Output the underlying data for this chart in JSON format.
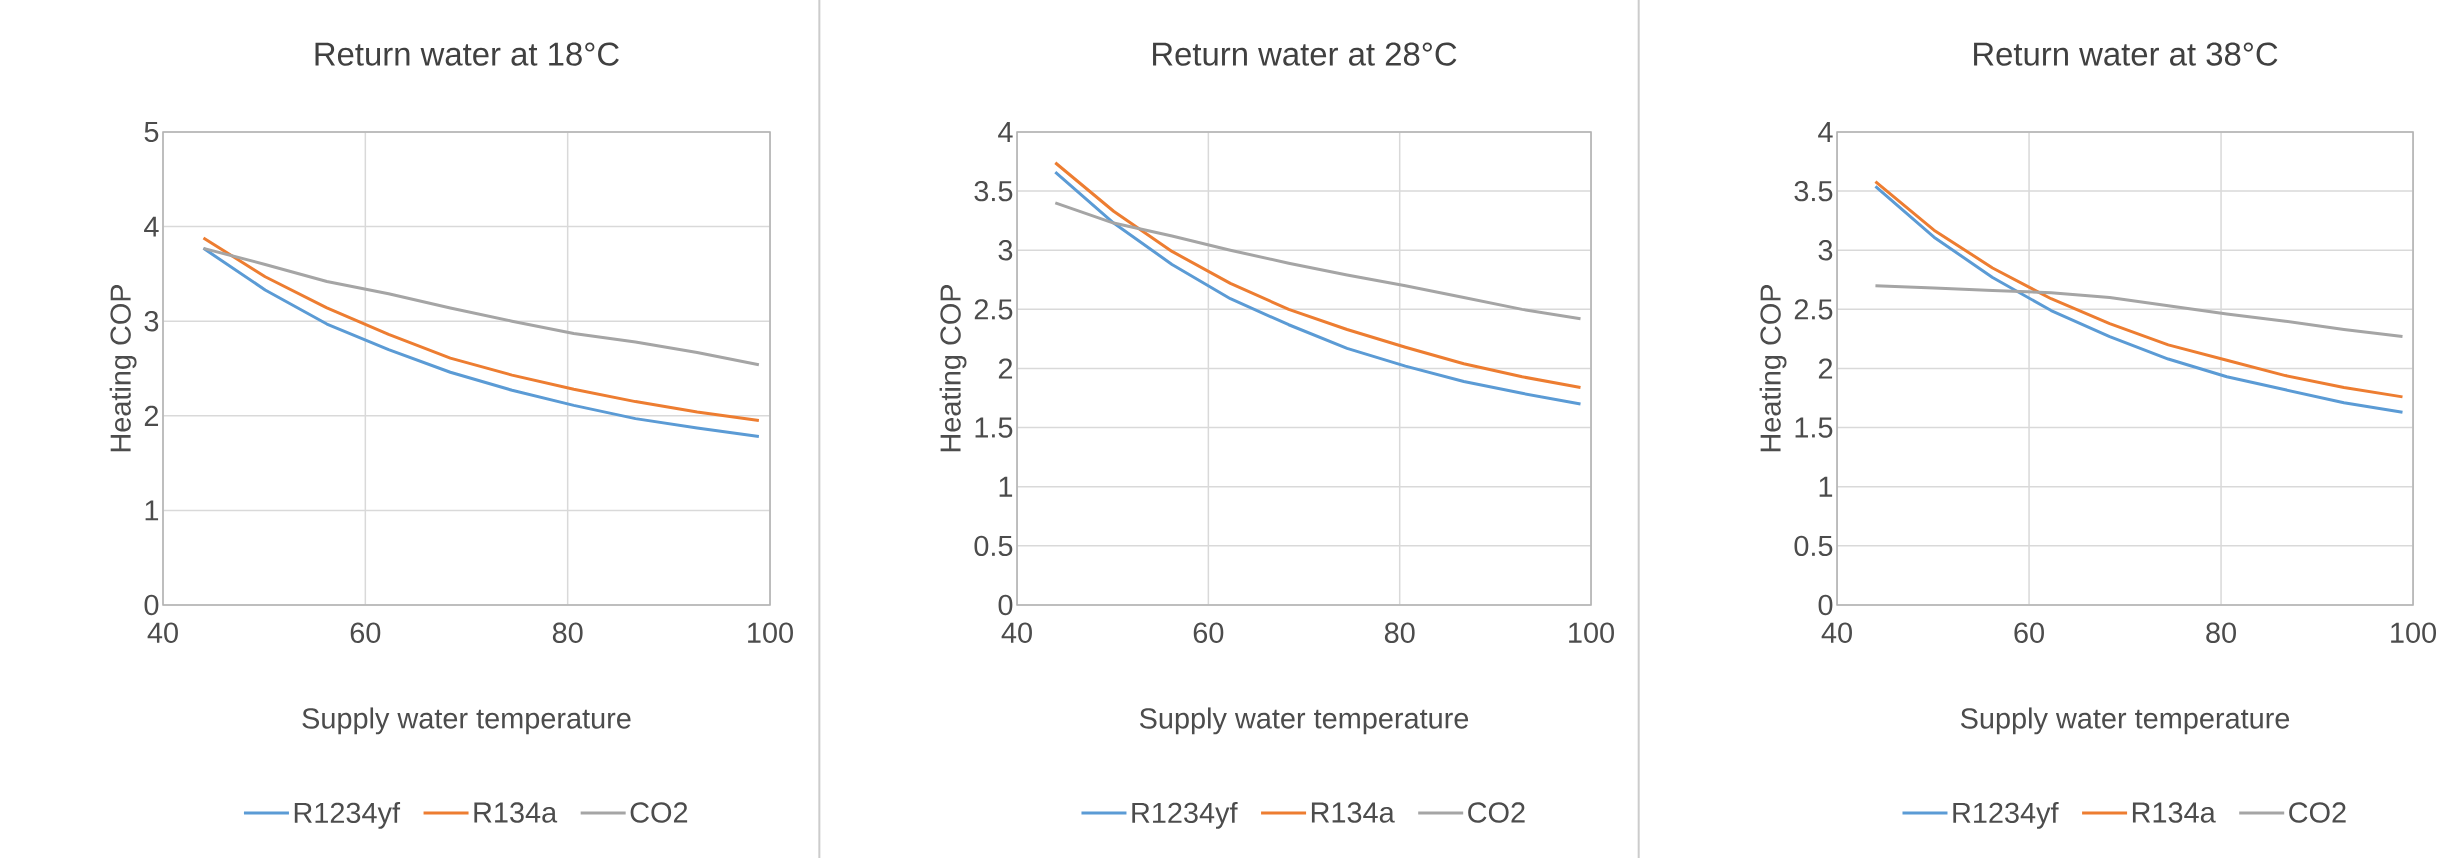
{
  "chart_data": [
    {
      "type": "line",
      "title": "Return water at 18°C",
      "xlabel": "Supply water temperature",
      "ylabel": "Heating COP",
      "xlim": [
        40,
        100
      ],
      "xticks": [
        40,
        60,
        80,
        100
      ],
      "ylim": [
        0,
        5
      ],
      "yticks": [
        0,
        1,
        2,
        3,
        4,
        5
      ],
      "grid": true,
      "legend": "bottom",
      "x": [
        44,
        50.1,
        56.2,
        62.3,
        68.4,
        74.5,
        80.6,
        86.7,
        92.8,
        98.9
      ],
      "series": [
        {
          "name": "R1234yf",
          "color": "#5b9bd5",
          "values": [
            3.77,
            3.33,
            2.97,
            2.7,
            2.46,
            2.27,
            2.11,
            1.97,
            1.87,
            1.78
          ]
        },
        {
          "name": "R134a",
          "color": "#ed7d31",
          "values": [
            3.88,
            3.47,
            3.14,
            2.86,
            2.61,
            2.43,
            2.28,
            2.15,
            2.04,
            1.95
          ]
        },
        {
          "name": "CO2",
          "color": "#a5a5a5",
          "values": [
            3.77,
            3.6,
            3.42,
            3.29,
            3.14,
            3.0,
            2.87,
            2.78,
            2.67,
            2.54
          ]
        }
      ]
    },
    {
      "type": "line",
      "title": "Return water at 28°C",
      "xlabel": "Supply water temperature",
      "ylabel": "Heating COP",
      "xlim": [
        40,
        100
      ],
      "xticks": [
        40,
        60,
        80,
        100
      ],
      "ylim": [
        0,
        4
      ],
      "yticks": [
        0,
        0.5,
        1,
        1.5,
        2,
        2.5,
        3,
        3.5,
        4
      ],
      "grid": true,
      "legend": "bottom",
      "x": [
        44,
        50.1,
        56.2,
        62.3,
        68.4,
        74.5,
        80.6,
        86.7,
        92.8,
        98.9
      ],
      "series": [
        {
          "name": "R1234yf",
          "color": "#5b9bd5",
          "values": [
            3.66,
            3.23,
            2.88,
            2.59,
            2.37,
            2.17,
            2.02,
            1.89,
            1.79,
            1.7
          ]
        },
        {
          "name": "R134a",
          "color": "#ed7d31",
          "values": [
            3.74,
            3.33,
            2.99,
            2.72,
            2.5,
            2.33,
            2.18,
            2.04,
            1.93,
            1.84
          ]
        },
        {
          "name": "CO2",
          "color": "#a5a5a5",
          "values": [
            3.4,
            3.23,
            3.12,
            3.0,
            2.89,
            2.79,
            2.7,
            2.6,
            2.5,
            2.42
          ]
        }
      ]
    },
    {
      "type": "line",
      "title": "Return water at 38°C",
      "xlabel": "Supply water temperature",
      "ylabel": "Heating COP",
      "xlim": [
        40,
        100
      ],
      "xticks": [
        40,
        60,
        80,
        100
      ],
      "ylim": [
        0,
        4
      ],
      "yticks": [
        0,
        0.5,
        1,
        1.5,
        2,
        2.5,
        3,
        3.5,
        4
      ],
      "grid": true,
      "legend": "bottom",
      "x": [
        44,
        50.1,
        56.2,
        62.3,
        68.4,
        74.5,
        80.6,
        86.7,
        92.8,
        98.9
      ],
      "series": [
        {
          "name": "R1234yf",
          "color": "#5b9bd5",
          "values": [
            3.54,
            3.11,
            2.77,
            2.49,
            2.27,
            2.08,
            1.93,
            1.82,
            1.71,
            1.63
          ]
        },
        {
          "name": "R134a",
          "color": "#ed7d31",
          "values": [
            3.58,
            3.17,
            2.85,
            2.59,
            2.38,
            2.2,
            2.07,
            1.94,
            1.84,
            1.76
          ]
        },
        {
          "name": "CO2",
          "color": "#a5a5a5",
          "values": [
            2.7,
            2.68,
            2.66,
            2.64,
            2.6,
            2.53,
            2.46,
            2.4,
            2.33,
            2.27
          ]
        }
      ]
    }
  ]
}
